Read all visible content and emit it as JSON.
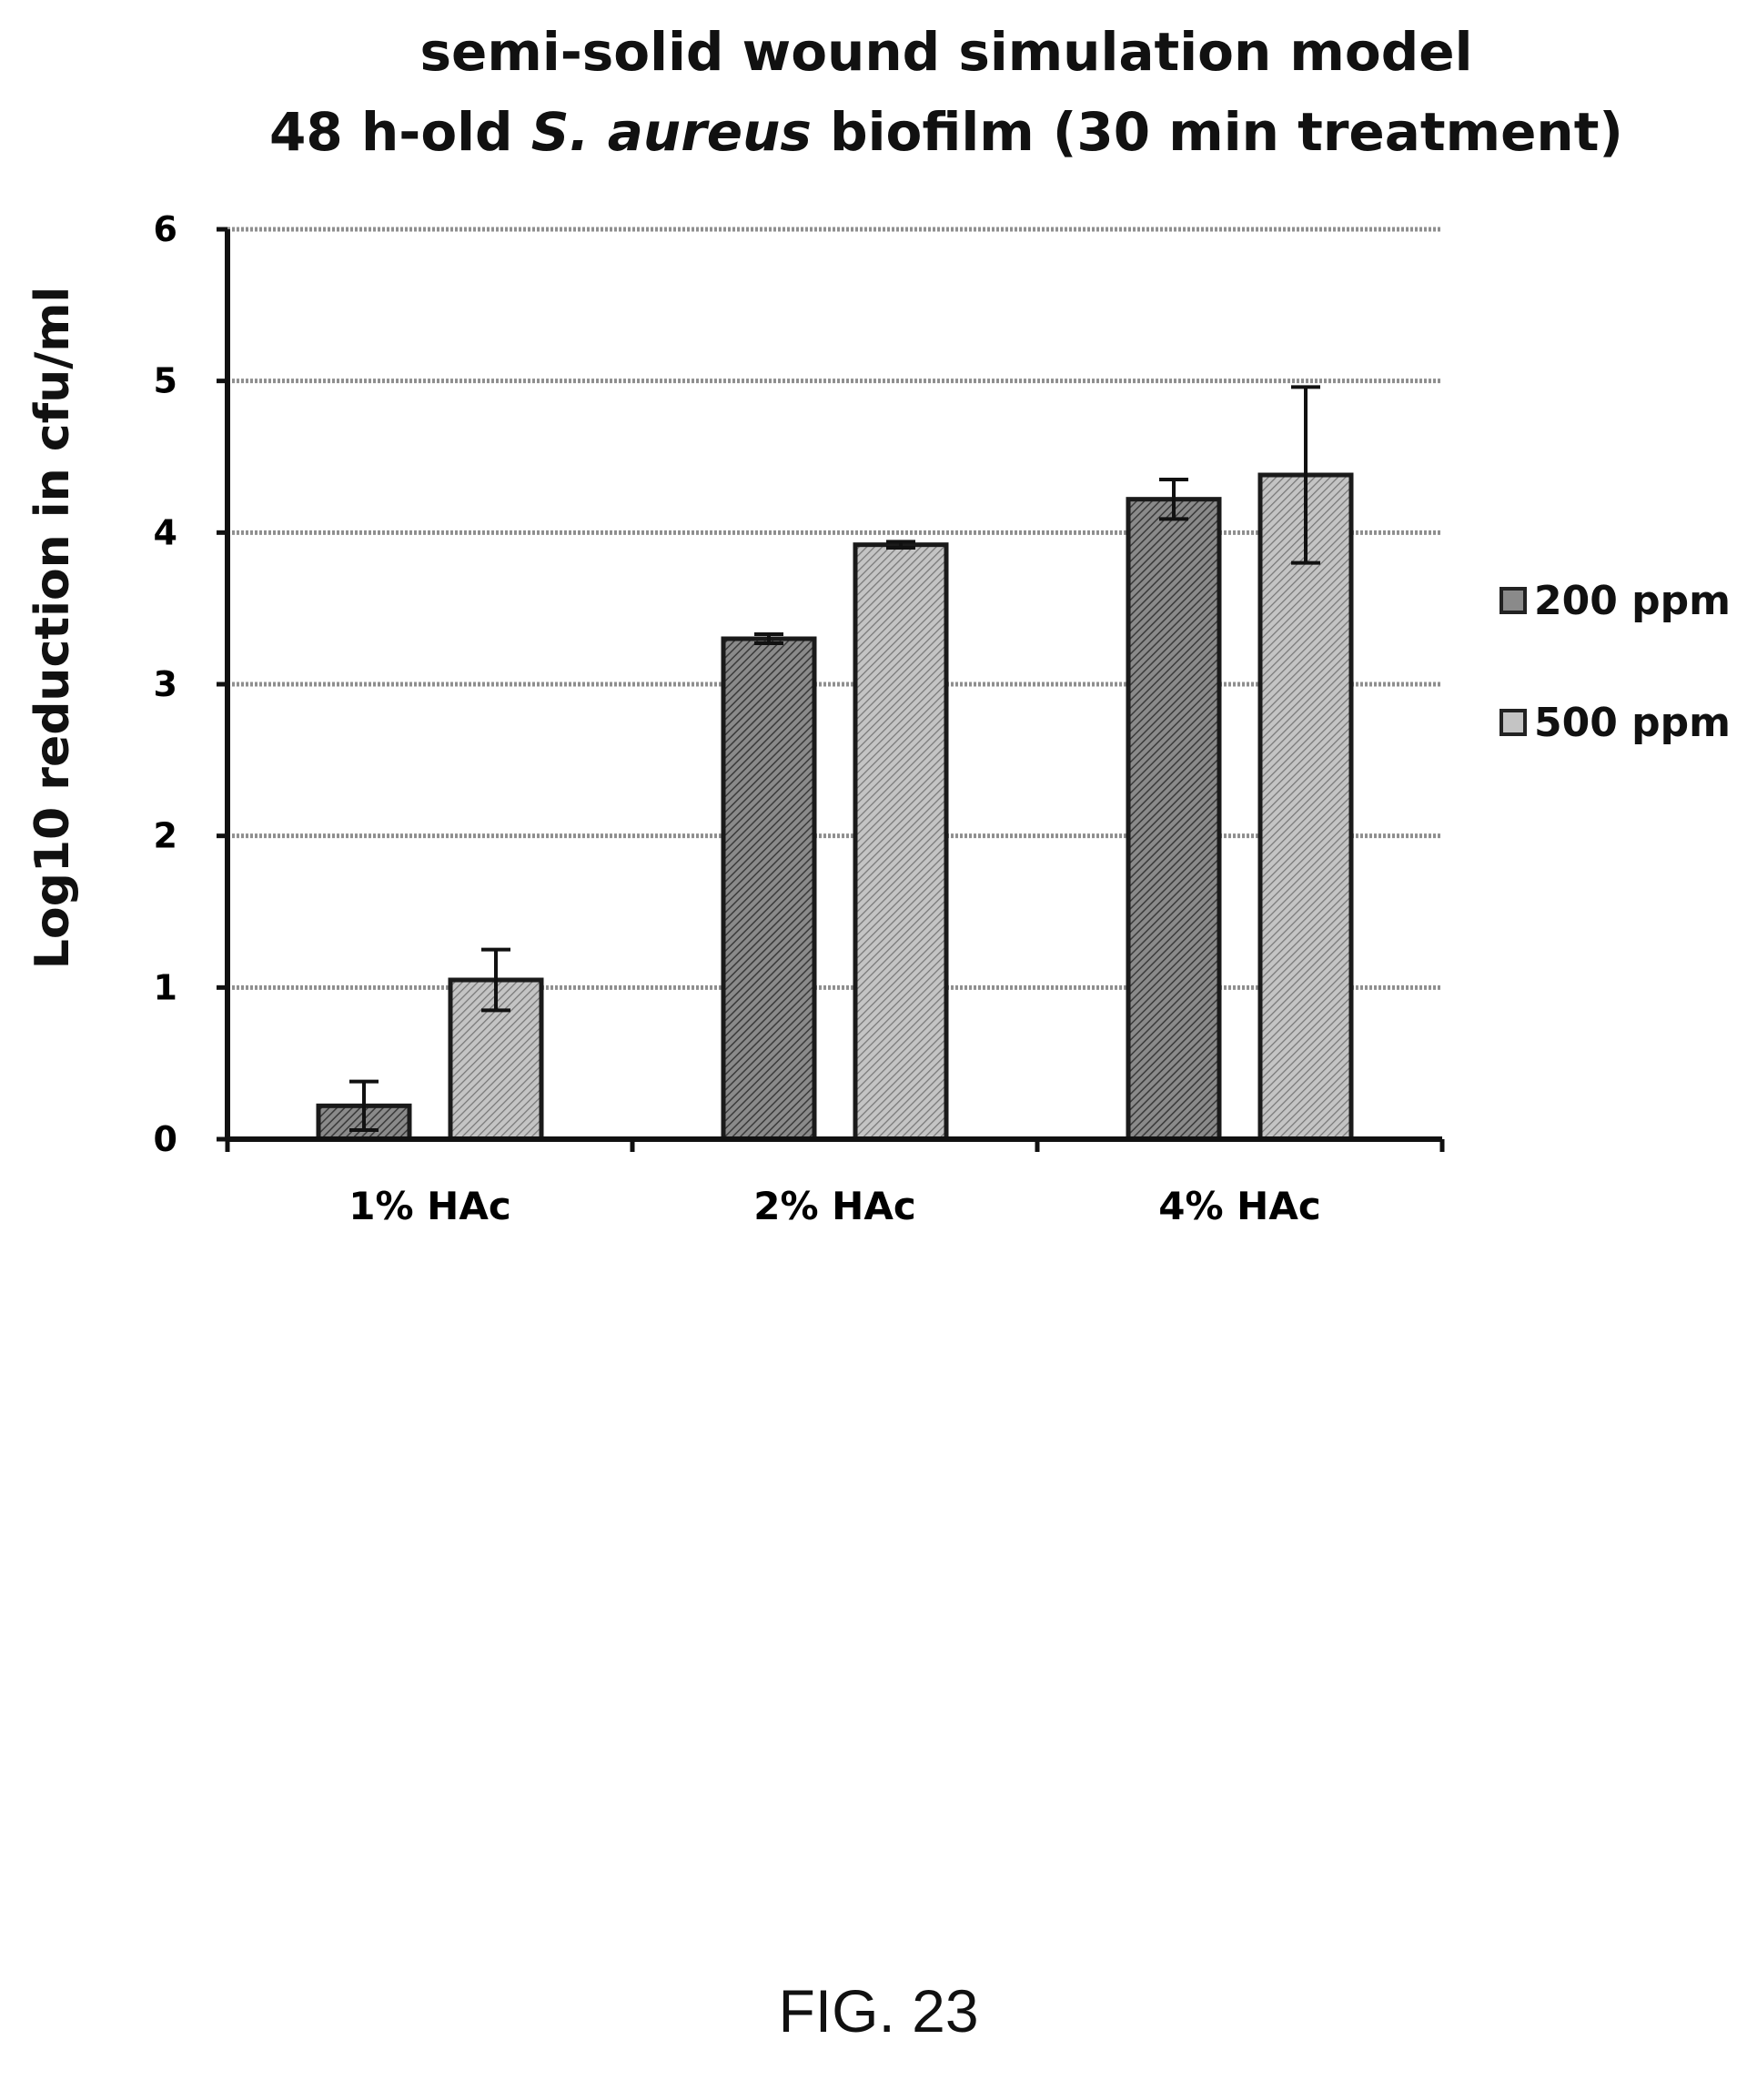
{
  "chart_data": {
    "type": "bar",
    "title_line1": "semi-solid wound simulation model",
    "title_line2_prefix": "48 h-old ",
    "title_line2_italic": "S. aureus",
    "title_line2_suffix": " biofilm (30 min treatment)",
    "ylabel": "Log10 reduction in cfu/ml",
    "xlabel": "",
    "ylim": [
      0,
      6
    ],
    "yticks": [
      "0",
      "1",
      "2",
      "3",
      "4",
      "5",
      "6"
    ],
    "grid": true,
    "legend_position": "right",
    "categories": [
      "1% HAc",
      "2% HAc",
      "4% HAc"
    ],
    "series": [
      {
        "name": "200 ppm",
        "values": [
          0.22,
          3.3,
          4.22
        ],
        "error": [
          0.16,
          0.03,
          0.13
        ],
        "color": "#6e6e6e"
      },
      {
        "name": "500 ppm",
        "values": [
          1.05,
          3.92,
          4.38
        ],
        "error": [
          0.2,
          0.02,
          0.58
        ],
        "color": "#a9a9a9"
      }
    ]
  },
  "figure_label": "FIG. 23"
}
